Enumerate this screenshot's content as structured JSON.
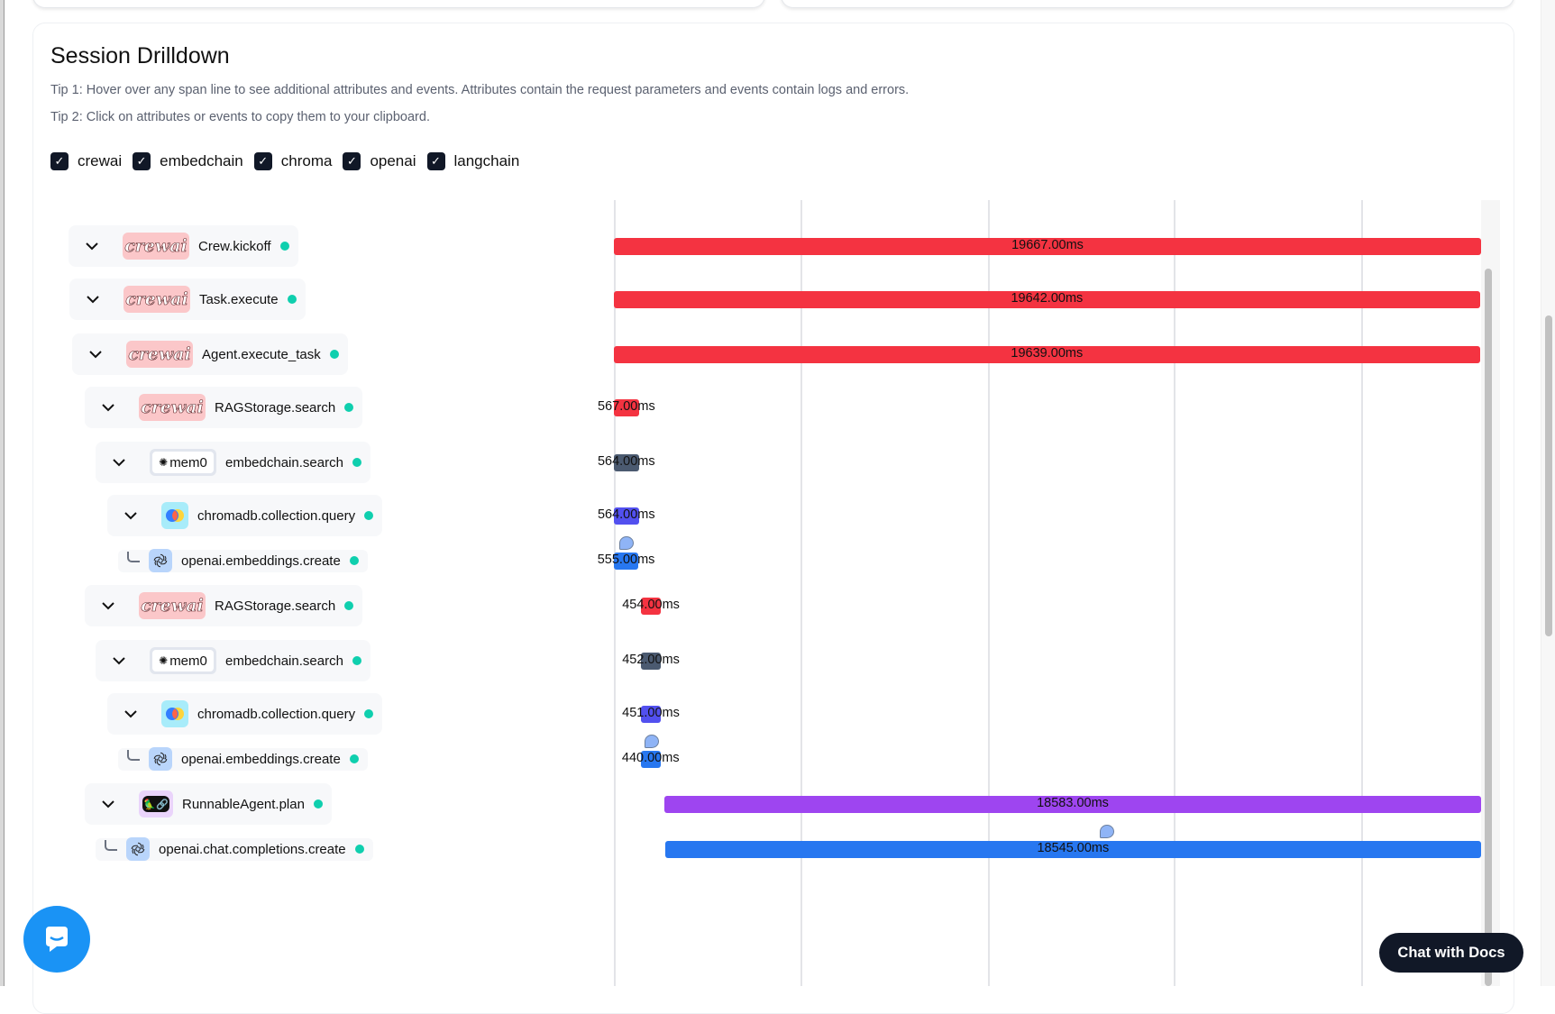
{
  "section": {
    "title": "Session Drilldown",
    "tip1": "Tip 1: Hover over any span line to see additional attributes and events. Attributes contain the request parameters and events contain logs and errors.",
    "tip2": "Tip 2: Click on attributes or events to copy them to your clipboard."
  },
  "filters": [
    {
      "label": "crewai",
      "checked": true
    },
    {
      "label": "embedchain",
      "checked": true
    },
    {
      "label": "chroma",
      "checked": true
    },
    {
      "label": "openai",
      "checked": true
    },
    {
      "label": "langchain",
      "checked": true
    }
  ],
  "colors": {
    "crewai": "#f43341",
    "embedchain": "#4b5a70",
    "chroma": "#5250ef",
    "openai": "#2777f0",
    "langchain": "#9e45f0",
    "status_ok": "#0fcfae"
  },
  "badges": {
    "crewai": "crewai",
    "mem0": "mem0"
  },
  "spans": [
    {
      "name": "Crew.kickoff",
      "provider": "crewai",
      "expanded": true,
      "duration_label": "19667.00ms",
      "duration_ms": 19667,
      "start_ms": 0
    },
    {
      "name": "Task.execute",
      "provider": "crewai",
      "expanded": true,
      "duration_label": "19642.00ms",
      "duration_ms": 19642,
      "start_ms": 0
    },
    {
      "name": "Agent.execute_task",
      "provider": "crewai",
      "expanded": true,
      "duration_label": "19639.00ms",
      "duration_ms": 19639,
      "start_ms": 0
    },
    {
      "name": "RAGStorage.search",
      "provider": "crewai",
      "expanded": true,
      "duration_label": "567.00ms",
      "duration_ms": 567,
      "start_ms": 0
    },
    {
      "name": "embedchain.search",
      "provider": "embedchain",
      "expanded": true,
      "duration_label": "564.00ms",
      "duration_ms": 564,
      "start_ms": 0
    },
    {
      "name": "chromadb.collection.query",
      "provider": "chroma",
      "expanded": true,
      "duration_label": "564.00ms",
      "duration_ms": 564,
      "start_ms": 0
    },
    {
      "name": "openai.embeddings.create",
      "provider": "openai",
      "leaf": true,
      "duration_label": "555.00ms",
      "duration_ms": 555,
      "start_ms": 0,
      "event_ms": 290
    },
    {
      "name": "RAGStorage.search",
      "provider": "crewai",
      "expanded": true,
      "duration_label": "454.00ms",
      "duration_ms": 454,
      "start_ms": 613
    },
    {
      "name": "embedchain.search",
      "provider": "embedchain",
      "expanded": true,
      "duration_label": "452.00ms",
      "duration_ms": 452,
      "start_ms": 613
    },
    {
      "name": "chromadb.collection.query",
      "provider": "chroma",
      "expanded": true,
      "duration_label": "451.00ms",
      "duration_ms": 451,
      "start_ms": 613
    },
    {
      "name": "openai.embeddings.create",
      "provider": "openai",
      "leaf": true,
      "duration_label": "440.00ms",
      "duration_ms": 440,
      "start_ms": 613,
      "event_ms": 860
    },
    {
      "name": "RunnableAgent.plan",
      "provider": "langchain",
      "expanded": true,
      "duration_label": "18583.00ms",
      "duration_ms": 18583,
      "start_ms": 1145
    },
    {
      "name": "openai.chat.completions.create",
      "provider": "openai",
      "leaf": true,
      "duration_label": "18545.00ms",
      "duration_ms": 18545,
      "start_ms": 1160,
      "event_ms": 11190
    }
  ],
  "chat_widget": {
    "label": "Chat with Docs"
  }
}
